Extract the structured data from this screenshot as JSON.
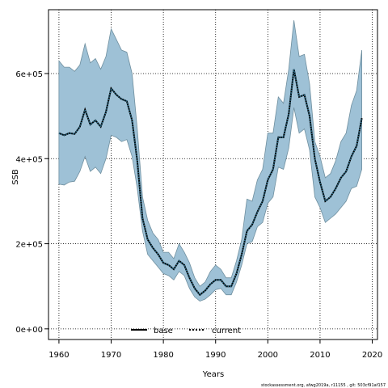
{
  "chart_data": {
    "type": "area",
    "xlabel": "Years",
    "ylabel": "SSB",
    "xlim": [
      1958,
      2021
    ],
    "ylim": [
      -25000,
      750000
    ],
    "xticks": [
      1960,
      1970,
      1980,
      1990,
      2000,
      2010,
      2020
    ],
    "yticks": [
      0,
      200000,
      400000,
      600000
    ],
    "ytick_labels": [
      "0e+00",
      "2e+05",
      "4e+05",
      "6e+05"
    ],
    "grid": true,
    "legend_position": "bottom-center",
    "colors": {
      "band_fill": "#9ec1d6",
      "band_edge": "#6f8f9f",
      "line": "#000000",
      "grid": "#000000"
    },
    "x": [
      1960,
      1961,
      1962,
      1963,
      1964,
      1965,
      1966,
      1967,
      1968,
      1969,
      1970,
      1971,
      1972,
      1973,
      1974,
      1975,
      1976,
      1977,
      1978,
      1979,
      1980,
      1981,
      1982,
      1983,
      1984,
      1985,
      1986,
      1987,
      1988,
      1989,
      1990,
      1991,
      1992,
      1993,
      1994,
      1995,
      1996,
      1997,
      1998,
      1999,
      2000,
      2001,
      2002,
      2003,
      2004,
      2005,
      2006,
      2007,
      2008,
      2009,
      2010,
      2011,
      2012,
      2013,
      2014,
      2015,
      2016,
      2017,
      2018
    ],
    "series": [
      {
        "name": "base",
        "style": "solid",
        "values": [
          460000,
          455000,
          460000,
          458000,
          475000,
          515000,
          480000,
          490000,
          475000,
          510000,
          565000,
          550000,
          540000,
          535000,
          490000,
          395000,
          260000,
          210000,
          190000,
          175000,
          155000,
          150000,
          140000,
          160000,
          150000,
          120000,
          95000,
          80000,
          90000,
          105000,
          115000,
          115000,
          100000,
          100000,
          130000,
          175000,
          230000,
          245000,
          275000,
          300000,
          350000,
          375000,
          450000,
          450000,
          505000,
          610000,
          545000,
          550000,
          500000,
          400000,
          345000,
          300000,
          310000,
          330000,
          355000,
          370000,
          405000,
          430000,
          495000
        ],
        "lower": [
          340000,
          338000,
          345000,
          347000,
          370000,
          405000,
          370000,
          380000,
          365000,
          400000,
          455000,
          450000,
          440000,
          445000,
          405000,
          330000,
          230000,
          175000,
          160000,
          145000,
          130000,
          125000,
          115000,
          135000,
          125000,
          95000,
          75000,
          65000,
          70000,
          80000,
          92000,
          95000,
          80000,
          80000,
          110000,
          150000,
          200000,
          205000,
          240000,
          250000,
          295000,
          310000,
          380000,
          375000,
          425000,
          520000,
          460000,
          470000,
          420000,
          310000,
          285000,
          250000,
          260000,
          270000,
          285000,
          300000,
          330000,
          335000,
          375000
        ],
        "upper": [
          630000,
          615000,
          615000,
          605000,
          620000,
          670000,
          625000,
          635000,
          610000,
          640000,
          705000,
          680000,
          655000,
          650000,
          600000,
          470000,
          310000,
          255000,
          225000,
          210000,
          180000,
          180000,
          165000,
          200000,
          180000,
          155000,
          120000,
          100000,
          110000,
          135000,
          150000,
          140000,
          120000,
          120000,
          160000,
          210000,
          305000,
          300000,
          350000,
          375000,
          460000,
          460000,
          545000,
          530000,
          610000,
          725000,
          640000,
          645000,
          575000,
          440000,
          405000,
          355000,
          365000,
          395000,
          440000,
          460000,
          525000,
          560000,
          655000
        ]
      },
      {
        "name": "current",
        "style": "dotted",
        "values": [
          460000,
          455000,
          460000,
          458000,
          475000,
          515000,
          480000,
          490000,
          475000,
          510000,
          565000,
          550000,
          540000,
          535000,
          490000,
          395000,
          260000,
          210000,
          190000,
          175000,
          155000,
          150000,
          140000,
          160000,
          150000,
          120000,
          95000,
          80000,
          90000,
          105000,
          115000,
          115000,
          100000,
          100000,
          130000,
          175000,
          230000,
          245000,
          275000,
          300000,
          350000,
          375000,
          450000,
          450000,
          505000,
          610000,
          545000,
          550000,
          500000,
          400000,
          345000,
          300000,
          310000,
          330000,
          355000,
          370000,
          405000,
          430000,
          495000
        ]
      }
    ],
    "footnote": "stockassessment.org, afwg2019a, r11155 , git: 503cf91af157"
  }
}
